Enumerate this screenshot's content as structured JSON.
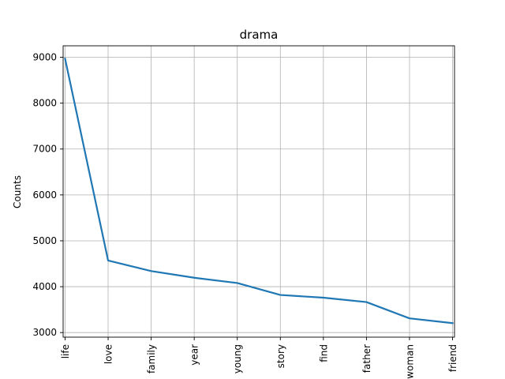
{
  "chart_data": {
    "type": "line",
    "title": "drama",
    "xlabel": "",
    "ylabel": "Counts",
    "categories": [
      "life",
      "love",
      "family",
      "year",
      "young",
      "story",
      "find",
      "father",
      "woman",
      "friend"
    ],
    "series": [
      {
        "values": [
          8970,
          4570,
          4340,
          4195,
          4080,
          3820,
          3760,
          3665,
          3310,
          3205
        ],
        "color": "#1f77b4"
      }
    ],
    "ylim": [
      2900,
      9250
    ],
    "yticks": [
      3000,
      4000,
      5000,
      6000,
      7000,
      8000,
      9000
    ],
    "grid": true,
    "legend": "none"
  }
}
